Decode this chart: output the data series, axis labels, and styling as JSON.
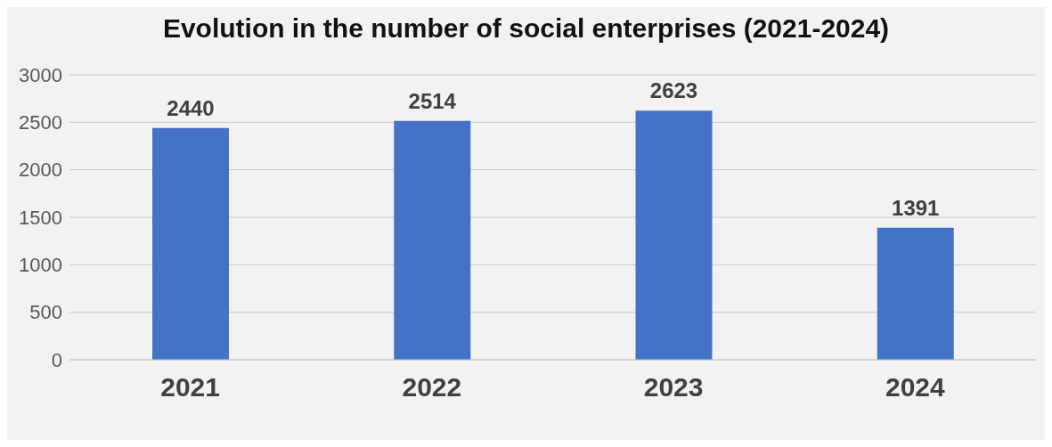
{
  "chart_data": {
    "type": "bar",
    "title": "Evolution in the number of social enterprises (2021-2024)",
    "categories": [
      "2021",
      "2022",
      "2023",
      "2024"
    ],
    "values": [
      2440,
      2514,
      2623,
      1391
    ],
    "color": "#4472c4",
    "ylim": [
      0,
      3000
    ],
    "yticks": [
      0,
      500,
      1000,
      1500,
      2000,
      2500,
      3000
    ],
    "grid": "y",
    "data_labels": true
  }
}
